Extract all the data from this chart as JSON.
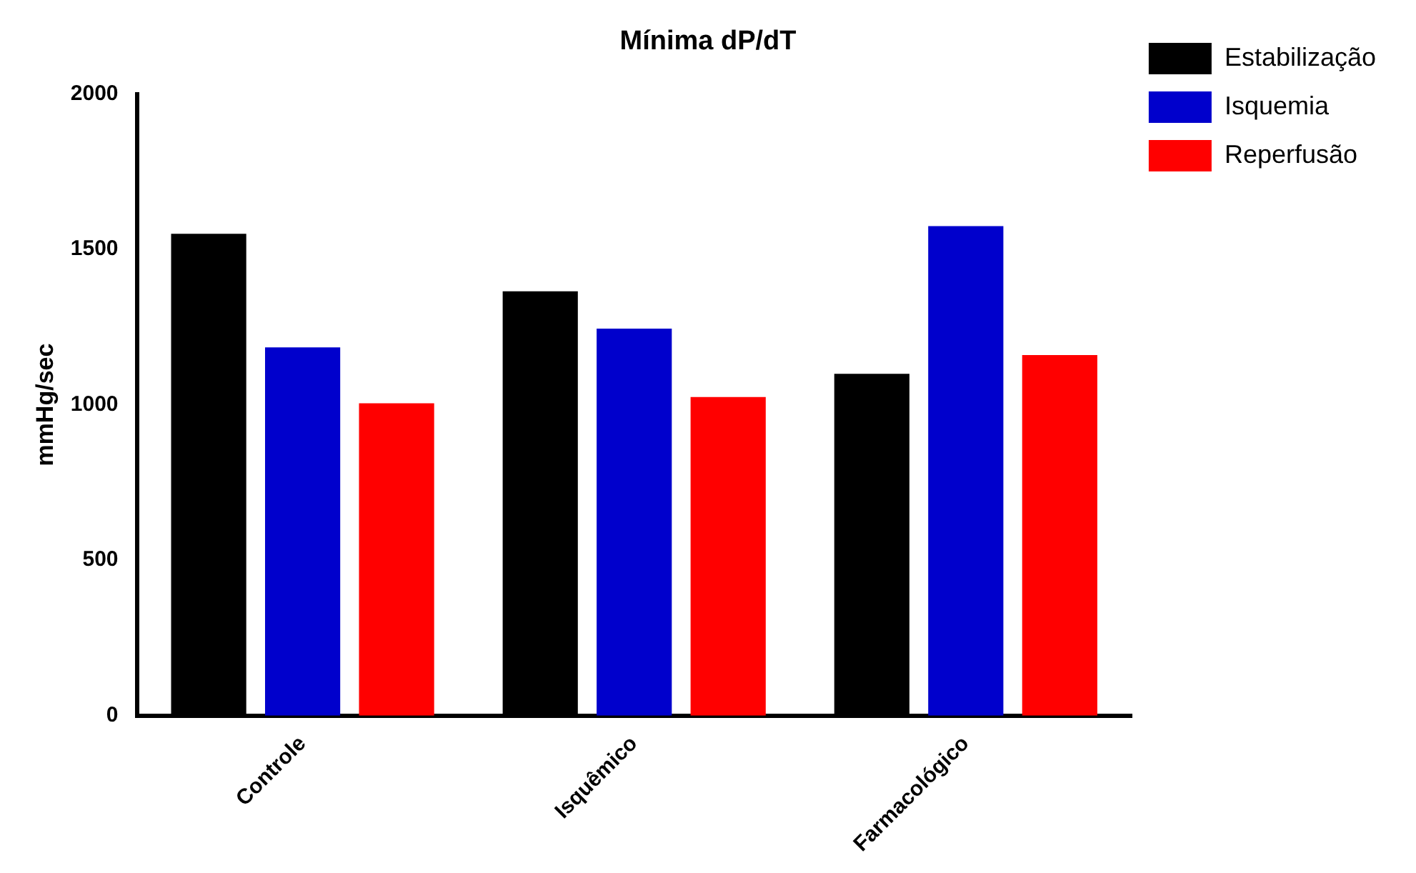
{
  "chart_data": {
    "type": "bar",
    "title": "Mínima dP/dT",
    "ylabel": "mmHg/sec",
    "categories": [
      "Controle",
      "Isquêmico",
      "Farmacológico"
    ],
    "series": [
      {
        "name": "Estabilização",
        "color": "#000000",
        "values": [
          1550,
          1365,
          1100
        ]
      },
      {
        "name": "Isquemia",
        "color": "#0000cc",
        "values": [
          1185,
          1245,
          1575
        ]
      },
      {
        "name": "Reperfusão",
        "color": "#ff0000",
        "values": [
          1005,
          1025,
          1160
        ]
      }
    ],
    "ylim": [
      0,
      2000
    ],
    "yticks": [
      0,
      500,
      1000,
      1500,
      2000
    ],
    "grid": false,
    "legend": "top right"
  }
}
